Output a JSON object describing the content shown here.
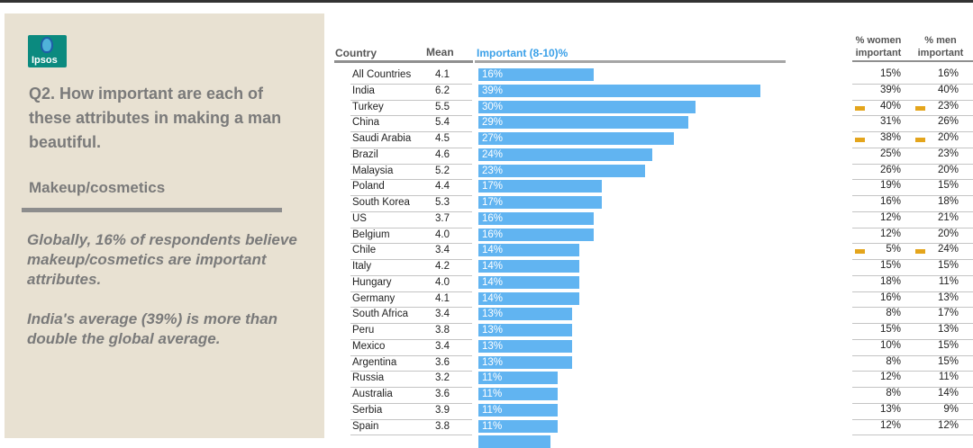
{
  "panel": {
    "logo_text": "Ipsos",
    "question": "Q2. How important are each of these attributes in making a man beautiful.",
    "attribute": "Makeup/cosmetics",
    "note1": "Globally, 16% of respondents believe makeup/cosmetics are important attributes.",
    "note2": "India's average (39%) is more than double the global average."
  },
  "headers": {
    "country": "Country",
    "mean": "Mean",
    "important": "Important (8-10)%",
    "women_line1": "% women",
    "women_line2": "important",
    "men_line1": "% men",
    "men_line2": "important"
  },
  "colors": {
    "bar": "#61b4f1",
    "flag": "#e4a51c",
    "header_blue": "#3aa0e8"
  },
  "chart_data": {
    "type": "bar",
    "orientation": "horizontal",
    "xlim": [
      0,
      45
    ],
    "categories": [
      "All Countries",
      "India",
      "Turkey",
      "China",
      "Saudi Arabia",
      "Brazil",
      "Malaysia",
      "Poland",
      "South Korea",
      "US",
      "Belgium",
      "Chile",
      "Italy",
      "Hungary",
      "Germany",
      "South Africa",
      "Peru",
      "Mexico",
      "Argentina",
      "Russia",
      "Australia",
      "Serbia",
      "Spain"
    ],
    "mean": [
      "4.1",
      "6.2",
      "5.5",
      "5.4",
      "4.5",
      "4.6",
      "5.2",
      "4.4",
      "5.3",
      "3.7",
      "4.0",
      "3.4",
      "4.2",
      "4.0",
      "4.1",
      "3.4",
      "3.8",
      "3.4",
      "3.6",
      "3.2",
      "3.6",
      "3.9",
      "3.8"
    ],
    "series": [
      {
        "name": "Important (8-10)%",
        "values": [
          16,
          39,
          30,
          29,
          27,
          24,
          23,
          17,
          17,
          16,
          16,
          14,
          14,
          14,
          14,
          13,
          13,
          13,
          13,
          11,
          11,
          11,
          11
        ],
        "labels": [
          "16%",
          "39%",
          "30%",
          "29%",
          "27%",
          "24%",
          "23%",
          "17%",
          "17%",
          "16%",
          "16%",
          "14%",
          "14%",
          "14%",
          "14%",
          "13%",
          "13%",
          "13%",
          "13%",
          "11%",
          "11%",
          "11%",
          "11%"
        ]
      }
    ],
    "women": [
      "15%",
      "39%",
      "40%",
      "31%",
      "38%",
      "25%",
      "26%",
      "19%",
      "16%",
      "12%",
      "12%",
      "5%",
      "15%",
      "18%",
      "16%",
      "8%",
      "15%",
      "10%",
      "8%",
      "12%",
      "8%",
      "13%",
      "12%"
    ],
    "men": [
      "16%",
      "40%",
      "23%",
      "26%",
      "20%",
      "23%",
      "20%",
      "15%",
      "18%",
      "21%",
      "20%",
      "24%",
      "15%",
      "11%",
      "13%",
      "17%",
      "13%",
      "15%",
      "15%",
      "11%",
      "14%",
      "9%",
      "12%"
    ],
    "flagged": [
      false,
      false,
      true,
      false,
      true,
      false,
      false,
      false,
      false,
      false,
      false,
      true,
      false,
      false,
      false,
      false,
      false,
      false,
      false,
      false,
      false,
      false,
      false
    ],
    "partial_row": {
      "value": 10
    }
  }
}
